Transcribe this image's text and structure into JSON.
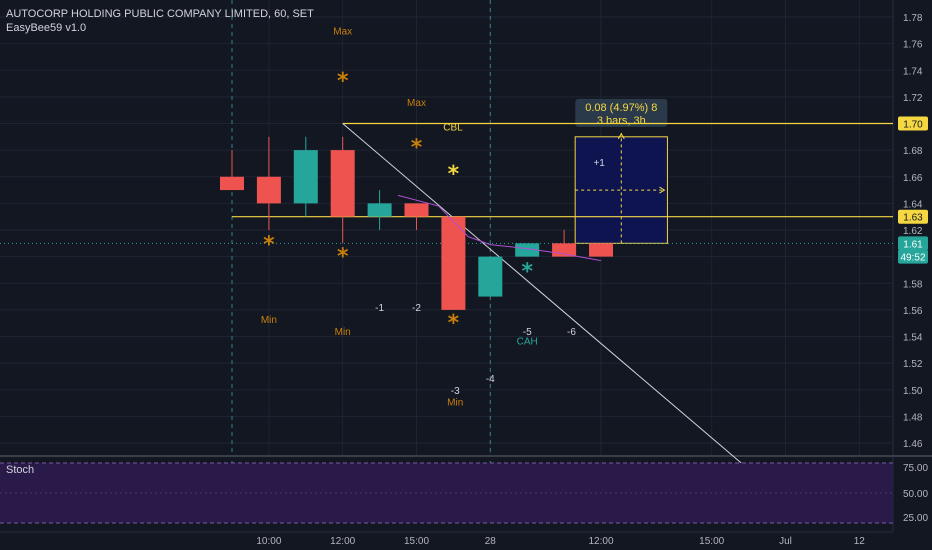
{
  "header": {
    "title": "AUTOCORP HOLDING PUBLIC COMPANY LIMITED, 60, SET",
    "indicator": "EasyBee59 v1.0"
  },
  "stoch_panel": {
    "label": "Stoch",
    "ticks": [
      "75.00",
      "50.00",
      "25.00"
    ]
  },
  "colors": {
    "background": "#131722",
    "bull": "#26a69a",
    "bear": "#ef5350",
    "level_line": "#f5d742",
    "annotation": "#c87f0a",
    "measure_box": "#0d1450",
    "stoch_fill": "#2a1a4a"
  },
  "chart_data": {
    "type": "candlestick",
    "title": "AUTOCORP HOLDING PUBLIC COMPANY LIMITED, 60, SET",
    "ylim": [
      1.445,
      1.79
    ],
    "y_ticks": [
      "1.78",
      "1.76",
      "1.74",
      "1.72",
      "1.70",
      "1.68",
      "1.66",
      "1.64",
      "1.62",
      "1.60",
      "1.58",
      "1.56",
      "1.54",
      "1.52",
      "1.50",
      "1.48",
      "1.46"
    ],
    "x_ticks": [
      {
        "label": "10:00",
        "bar": 1
      },
      {
        "label": "12:00",
        "bar": 3
      },
      {
        "label": "15:00",
        "bar": 5
      },
      {
        "label": "28",
        "bar": 7
      },
      {
        "label": "12:00",
        "bar": 10
      },
      {
        "label": "15:00",
        "bar": 13
      },
      {
        "label": "Jul",
        "bar": 15
      },
      {
        "label": "12",
        "bar": 17
      }
    ],
    "candles": [
      {
        "o": 1.66,
        "h": 1.68,
        "l": 1.65,
        "c": 1.65
      },
      {
        "o": 1.66,
        "h": 1.69,
        "l": 1.62,
        "c": 1.64
      },
      {
        "o": 1.64,
        "h": 1.69,
        "l": 1.63,
        "c": 1.68
      },
      {
        "o": 1.68,
        "h": 1.69,
        "l": 1.61,
        "c": 1.63
      },
      {
        "o": 1.63,
        "h": 1.65,
        "l": 1.62,
        "c": 1.64
      },
      {
        "o": 1.64,
        "h": 1.64,
        "l": 1.62,
        "c": 1.63
      },
      {
        "o": 1.63,
        "h": 1.63,
        "l": 1.56,
        "c": 1.56
      },
      {
        "o": 1.57,
        "h": 1.6,
        "l": 1.57,
        "c": 1.6
      },
      {
        "o": 1.6,
        "h": 1.61,
        "l": 1.6,
        "c": 1.61
      },
      {
        "o": 1.61,
        "h": 1.62,
        "l": 1.6,
        "c": 1.6
      },
      {
        "o": 1.61,
        "h": 1.61,
        "l": 1.6,
        "c": 1.6
      }
    ],
    "price_badges": [
      {
        "label": "1.70",
        "y": 1.7,
        "color": "#f5d742"
      },
      {
        "label": "1.63",
        "y": 1.63,
        "color": "#f5d742"
      },
      {
        "label": "1.61",
        "y": 1.61,
        "color": "#26a69a"
      },
      {
        "label": "49:52",
        "y": 1.6,
        "color": "#26a69a"
      }
    ],
    "levels": [
      {
        "label": "CBL",
        "y": 1.7,
        "from_bar": 3
      },
      {
        "label": "",
        "y": 1.63,
        "from_bar": 0
      }
    ],
    "trendline": {
      "from": {
        "bar": 3,
        "y": 1.7
      },
      "to": {
        "bar": 13.8,
        "y": 1.445
      }
    },
    "markers": [
      {
        "bar": 1,
        "y": 1.612,
        "color": "#c87f0a"
      },
      {
        "bar": 3,
        "y": 1.735,
        "color": "#c87f0a"
      },
      {
        "bar": 3,
        "y": 1.603,
        "color": "#c87f0a"
      },
      {
        "bar": 5,
        "y": 1.685,
        "color": "#c87f0a"
      },
      {
        "bar": 6,
        "y": 1.665,
        "color": "#f5d742"
      },
      {
        "bar": 6,
        "y": 1.553,
        "color": "#c87f0a"
      },
      {
        "bar": 8,
        "y": 1.592,
        "color": "#26a69a"
      }
    ],
    "labels": [
      {
        "text": "Max",
        "bar": 3,
        "y": 1.77,
        "color": "#c87f0a"
      },
      {
        "text": "Max",
        "bar": 5,
        "y": 1.716,
        "color": "#c87f0a"
      },
      {
        "text": "Min",
        "bar": 1,
        "y": 1.553,
        "color": "#c87f0a"
      },
      {
        "text": "Min",
        "bar": 3,
        "y": 1.544,
        "color": "#c87f0a"
      },
      {
        "text": "Min",
        "bar": 6.05,
        "y": 1.491,
        "color": "#c87f0a"
      },
      {
        "text": "-1",
        "bar": 4,
        "y": 1.562,
        "color": "#d1d4dc"
      },
      {
        "text": "-2",
        "bar": 5,
        "y": 1.562,
        "color": "#d1d4dc"
      },
      {
        "text": "-3",
        "bar": 6.05,
        "y": 1.5,
        "color": "#d1d4dc"
      },
      {
        "text": "-4",
        "bar": 7,
        "y": 1.509,
        "color": "#d1d4dc"
      },
      {
        "text": "-5",
        "bar": 8,
        "y": 1.544,
        "color": "#d1d4dc"
      },
      {
        "text": "-6",
        "bar": 9.2,
        "y": 1.544,
        "color": "#d1d4dc"
      },
      {
        "text": "CAH",
        "bar": 8,
        "y": 1.537,
        "color": "#26a69a"
      },
      {
        "text": "+1",
        "bar": 9.95,
        "y": 1.671,
        "color": "#d1d4dc"
      }
    ],
    "ma_line": [
      {
        "bar": 4.5,
        "y": 1.646
      },
      {
        "bar": 5.6,
        "y": 1.638
      },
      {
        "bar": 6.4,
        "y": 1.615
      },
      {
        "bar": 7.0,
        "y": 1.609
      },
      {
        "bar": 8.0,
        "y": 1.606
      },
      {
        "bar": 9.0,
        "y": 1.602
      },
      {
        "bar": 10.0,
        "y": 1.597
      }
    ],
    "measure": {
      "from_bar": 9.3,
      "to_bar": 11.8,
      "y_low": 1.61,
      "y_high": 1.69,
      "line1": "0.08 (4.97%) 8",
      "line2": "3 bars, 3h"
    }
  }
}
